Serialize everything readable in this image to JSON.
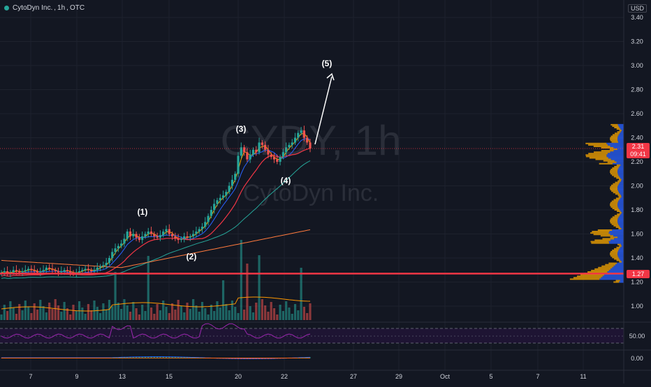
{
  "header": {
    "symbol": "CytoDyn Inc.",
    "interval": "1h",
    "exchange": "OTC",
    "separator": ","
  },
  "currency": "USD",
  "watermark": {
    "ticker": "CYDY, 1h",
    "name": "CytoDyn Inc."
  },
  "price_axis": {
    "ticks": [
      "3.40",
      "3.20",
      "3.00",
      "2.80",
      "2.60",
      "2.40",
      "2.20",
      "2.00",
      "1.80",
      "1.60",
      "1.40",
      "1.20",
      "1.00"
    ],
    "tick_values": [
      3.4,
      3.2,
      3.0,
      2.8,
      2.6,
      2.4,
      2.2,
      2.0,
      1.8,
      1.6,
      1.4,
      1.2,
      1.0
    ]
  },
  "current_price": {
    "value": "2.31",
    "countdown": "09:41",
    "price": 2.31
  },
  "support_level": {
    "value": "1.27",
    "price": 1.27,
    "color": "#f23645"
  },
  "rsi_axis": {
    "label": "50.00"
  },
  "macd_axis": {
    "label": "0.00"
  },
  "time_axis": {
    "labels": [
      "7",
      "9",
      "13",
      "15",
      "20",
      "22",
      "27",
      "29",
      "Oct",
      "5",
      "7",
      "11"
    ]
  },
  "wave_labels": [
    "(1)",
    "(2)",
    "(3)",
    "(4)",
    "(5)"
  ],
  "colors": {
    "up": "#26a69a",
    "down": "#ef5350",
    "ma_fast": "#f7a600",
    "ma_mid": "#2962ff",
    "ma_slow_red": "#f23645",
    "ma_teal": "#26a69a",
    "ma_orange": "#ff7a3d",
    "rsi": "#9c27b0",
    "volume_ma": "#ff9800"
  },
  "chart_data": {
    "type": "candlestick",
    "candles_close": [
      1.28,
      1.29,
      1.27,
      1.28,
      1.3,
      1.29,
      1.28,
      1.29,
      1.3,
      1.31,
      1.3,
      1.29,
      1.28,
      1.29,
      1.3,
      1.32,
      1.31,
      1.3,
      1.29,
      1.28,
      1.29,
      1.3,
      1.29,
      1.28,
      1.27,
      1.28,
      1.29,
      1.3,
      1.31,
      1.3,
      1.29,
      1.3,
      1.32,
      1.33,
      1.34,
      1.36,
      1.4,
      1.45,
      1.48,
      1.5,
      1.52,
      1.56,
      1.62,
      1.58,
      1.6,
      1.57,
      1.55,
      1.58,
      1.6,
      1.62,
      1.6,
      1.58,
      1.57,
      1.59,
      1.62,
      1.64,
      1.6,
      1.58,
      1.56,
      1.55,
      1.56,
      1.58,
      1.57,
      1.58,
      1.6,
      1.62,
      1.64,
      1.66,
      1.7,
      1.75,
      1.8,
      1.85,
      1.88,
      1.9,
      1.92,
      1.95,
      2.0,
      2.05,
      2.1,
      2.25,
      2.32,
      2.28,
      2.22,
      2.26,
      2.3,
      2.28,
      2.36,
      2.34,
      2.3,
      2.26,
      2.24,
      2.22,
      2.2,
      2.24,
      2.28,
      2.32,
      2.34,
      2.36,
      2.4,
      2.44,
      2.46,
      2.4,
      2.36,
      2.31
    ]
  }
}
